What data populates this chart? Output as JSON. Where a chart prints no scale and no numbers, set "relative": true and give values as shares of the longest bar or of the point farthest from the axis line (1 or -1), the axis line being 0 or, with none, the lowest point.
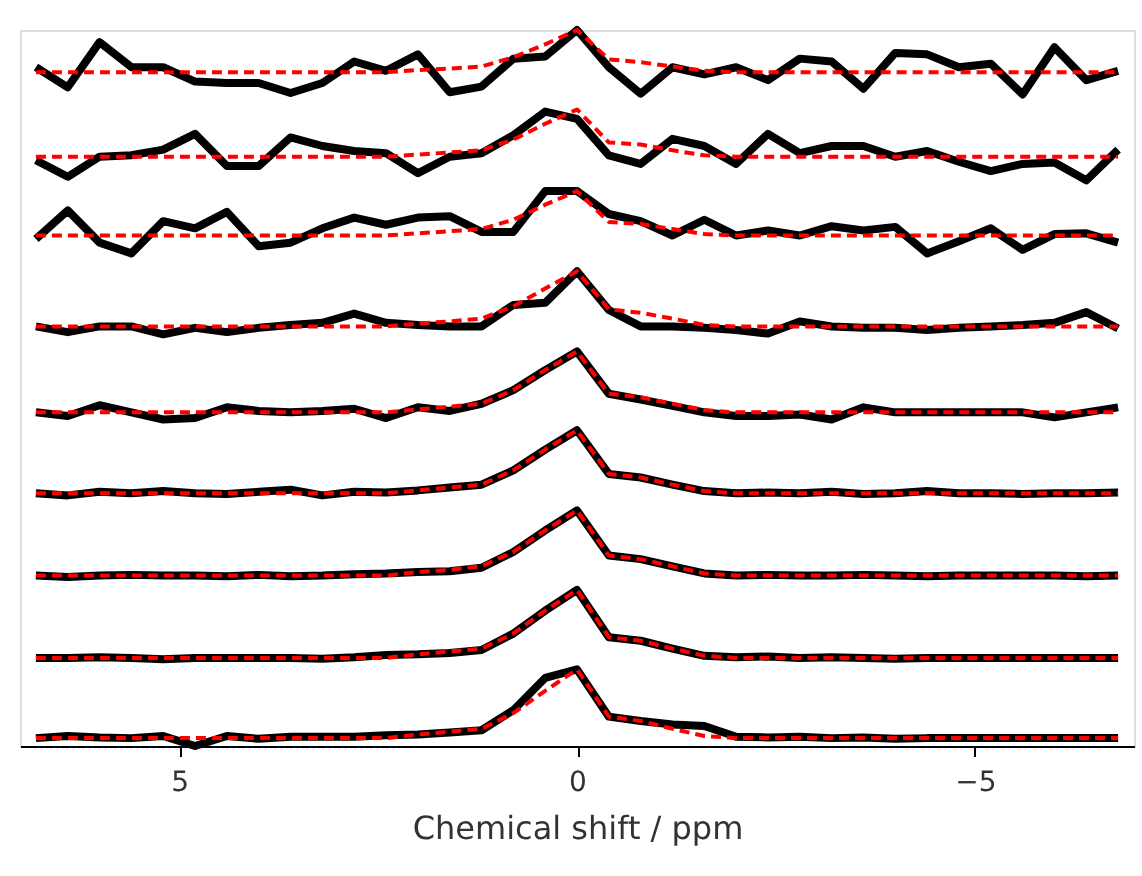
{
  "chart_data": {
    "type": "line",
    "xlabel": "Chemical shift / ppm",
    "relative": true,
    "xlim": [
      7,
      -7
    ],
    "xticks": [
      5,
      0,
      -5
    ],
    "x": [
      6.8,
      6.4,
      6.0,
      5.6,
      5.2,
      4.8,
      4.4,
      4.0,
      3.6,
      3.2,
      2.8,
      2.4,
      2.0,
      1.6,
      1.2,
      0.8,
      0.4,
      0,
      -0.4,
      -0.8,
      -1.2,
      -1.6,
      -2.0,
      -2.4,
      -2.8,
      -3.2,
      -3.6,
      -4.0,
      -4.4,
      -4.8,
      -5.2,
      -5.6,
      -6.0,
      -6.4,
      -6.8
    ],
    "series": [
      {
        "color": "#000000",
        "line_style": "solid",
        "values": [
          0.948,
          0.92,
          0.983,
          0.948,
          0.948,
          0.928,
          0.926,
          0.926,
          0.912,
          0.926,
          0.956,
          0.943,
          0.966,
          0.913,
          0.921,
          0.96,
          0.963,
          1.0,
          0.948,
          0.911,
          0.948,
          0.938,
          0.948,
          0.93,
          0.96,
          0.956,
          0.918,
          0.968,
          0.966,
          0.948,
          0.953,
          0.91,
          0.976,
          0.93,
          0.943
        ]
      },
      {
        "color": "#ff0000",
        "line_style": "dashed",
        "values": [
          0.941,
          0.941,
          0.941,
          0.941,
          0.941,
          0.941,
          0.941,
          0.941,
          0.941,
          0.941,
          0.941,
          0.941,
          0.944,
          0.946,
          0.949,
          0.962,
          0.98,
          1.0,
          0.959,
          0.955,
          0.949,
          0.943,
          0.941,
          0.941,
          0.941,
          0.941,
          0.941,
          0.941,
          0.941,
          0.941,
          0.941,
          0.941,
          0.941,
          0.941,
          0.941
        ]
      },
      {
        "color": "#000000",
        "line_style": "solid",
        "values": [
          0.818,
          0.795,
          0.823,
          0.825,
          0.833,
          0.855,
          0.81,
          0.81,
          0.85,
          0.838,
          0.831,
          0.828,
          0.8,
          0.823,
          0.828,
          0.853,
          0.886,
          0.876,
          0.825,
          0.813,
          0.848,
          0.838,
          0.813,
          0.855,
          0.828,
          0.838,
          0.838,
          0.823,
          0.831,
          0.816,
          0.803,
          0.813,
          0.815,
          0.79,
          0.833
        ]
      },
      {
        "color": "#ff0000",
        "line_style": "dashed",
        "values": [
          0.823,
          0.823,
          0.823,
          0.823,
          0.823,
          0.823,
          0.823,
          0.823,
          0.823,
          0.823,
          0.823,
          0.823,
          0.826,
          0.829,
          0.832,
          0.847,
          0.869,
          0.889,
          0.843,
          0.84,
          0.832,
          0.825,
          0.823,
          0.823,
          0.823,
          0.823,
          0.823,
          0.823,
          0.823,
          0.823,
          0.823,
          0.823,
          0.823,
          0.823,
          0.823
        ]
      },
      {
        "color": "#000000",
        "line_style": "solid",
        "values": [
          0.708,
          0.748,
          0.703,
          0.688,
          0.733,
          0.723,
          0.746,
          0.698,
          0.703,
          0.723,
          0.738,
          0.728,
          0.738,
          0.74,
          0.718,
          0.718,
          0.775,
          0.775,
          0.743,
          0.733,
          0.713,
          0.735,
          0.713,
          0.72,
          0.713,
          0.726,
          0.72,
          0.725,
          0.688,
          0.705,
          0.723,
          0.693,
          0.715,
          0.716,
          0.703
        ]
      },
      {
        "color": "#ff0000",
        "line_style": "dashed",
        "values": [
          0.713,
          0.713,
          0.713,
          0.713,
          0.713,
          0.713,
          0.713,
          0.713,
          0.713,
          0.713,
          0.713,
          0.713,
          0.716,
          0.719,
          0.722,
          0.735,
          0.756,
          0.775,
          0.732,
          0.729,
          0.722,
          0.715,
          0.713,
          0.713,
          0.713,
          0.713,
          0.713,
          0.713,
          0.713,
          0.713,
          0.713,
          0.713,
          0.713,
          0.713,
          0.713
        ]
      },
      {
        "color": "#000000",
        "line_style": "solid",
        "values": [
          0.586,
          0.578,
          0.586,
          0.586,
          0.575,
          0.584,
          0.578,
          0.584,
          0.588,
          0.591,
          0.604,
          0.591,
          0.588,
          0.586,
          0.586,
          0.616,
          0.619,
          0.663,
          0.609,
          0.586,
          0.586,
          0.584,
          0.581,
          0.576,
          0.593,
          0.586,
          0.584,
          0.584,
          0.581,
          0.584,
          0.586,
          0.588,
          0.591,
          0.606,
          0.583
        ]
      },
      {
        "color": "#ff0000",
        "line_style": "dashed",
        "values": [
          0.586,
          0.586,
          0.586,
          0.586,
          0.586,
          0.586,
          0.586,
          0.586,
          0.586,
          0.586,
          0.586,
          0.586,
          0.59,
          0.593,
          0.597,
          0.614,
          0.639,
          0.663,
          0.61,
          0.605,
          0.597,
          0.588,
          0.586,
          0.586,
          0.586,
          0.586,
          0.586,
          0.586,
          0.586,
          0.586,
          0.586,
          0.586,
          0.586,
          0.586,
          0.586
        ]
      },
      {
        "color": "#000000",
        "line_style": "solid",
        "values": [
          0.466,
          0.461,
          0.476,
          0.466,
          0.456,
          0.458,
          0.473,
          0.468,
          0.466,
          0.468,
          0.471,
          0.458,
          0.473,
          0.468,
          0.478,
          0.497,
          0.525,
          0.551,
          0.492,
          0.484,
          0.475,
          0.466,
          0.461,
          0.461,
          0.463,
          0.456,
          0.473,
          0.466,
          0.466,
          0.466,
          0.466,
          0.466,
          0.459,
          0.466,
          0.473
        ]
      },
      {
        "color": "#ff0000",
        "line_style": "dashed",
        "values": [
          0.466,
          0.466,
          0.466,
          0.466,
          0.466,
          0.466,
          0.466,
          0.466,
          0.466,
          0.466,
          0.466,
          0.466,
          0.47,
          0.474,
          0.478,
          0.497,
          0.525,
          0.551,
          0.492,
          0.487,
          0.478,
          0.469,
          0.466,
          0.466,
          0.466,
          0.466,
          0.466,
          0.466,
          0.466,
          0.466,
          0.466,
          0.466,
          0.466,
          0.466,
          0.466
        ]
      },
      {
        "color": "#000000",
        "line_style": "solid",
        "values": [
          0.353,
          0.35,
          0.355,
          0.353,
          0.356,
          0.353,
          0.352,
          0.355,
          0.358,
          0.35,
          0.355,
          0.354,
          0.357,
          0.361,
          0.365,
          0.385,
          0.414,
          0.441,
          0.38,
          0.375,
          0.365,
          0.356,
          0.353,
          0.354,
          0.353,
          0.355,
          0.352,
          0.353,
          0.356,
          0.353,
          0.353,
          0.352,
          0.353,
          0.353,
          0.354
        ]
      },
      {
        "color": "#ff0000",
        "line_style": "dashed",
        "values": [
          0.353,
          0.353,
          0.353,
          0.353,
          0.353,
          0.353,
          0.353,
          0.353,
          0.353,
          0.353,
          0.353,
          0.353,
          0.357,
          0.361,
          0.365,
          0.385,
          0.414,
          0.441,
          0.38,
          0.375,
          0.365,
          0.356,
          0.353,
          0.353,
          0.353,
          0.353,
          0.353,
          0.353,
          0.353,
          0.353,
          0.353,
          0.353,
          0.353,
          0.353,
          0.353
        ]
      },
      {
        "color": "#000000",
        "line_style": "solid",
        "values": [
          0.238,
          0.236,
          0.238,
          0.239,
          0.238,
          0.238,
          0.237,
          0.239,
          0.237,
          0.238,
          0.24,
          0.241,
          0.243,
          0.244,
          0.249,
          0.271,
          0.301,
          0.329,
          0.266,
          0.261,
          0.251,
          0.241,
          0.238,
          0.239,
          0.238,
          0.238,
          0.239,
          0.238,
          0.237,
          0.238,
          0.238,
          0.238,
          0.238,
          0.237,
          0.238
        ]
      },
      {
        "color": "#ff0000",
        "line_style": "dashed",
        "values": [
          0.238,
          0.238,
          0.238,
          0.238,
          0.238,
          0.238,
          0.238,
          0.238,
          0.238,
          0.238,
          0.238,
          0.238,
          0.243,
          0.246,
          0.251,
          0.271,
          0.301,
          0.329,
          0.266,
          0.261,
          0.251,
          0.241,
          0.238,
          0.238,
          0.238,
          0.238,
          0.238,
          0.238,
          0.238,
          0.238,
          0.238,
          0.238,
          0.238,
          0.238,
          0.238
        ]
      },
      {
        "color": "#000000",
        "line_style": "solid",
        "values": [
          0.123,
          0.123,
          0.124,
          0.123,
          0.121,
          0.123,
          0.123,
          0.123,
          0.123,
          0.122,
          0.124,
          0.127,
          0.128,
          0.13,
          0.134,
          0.157,
          0.189,
          0.218,
          0.152,
          0.147,
          0.136,
          0.126,
          0.124,
          0.125,
          0.123,
          0.124,
          0.123,
          0.122,
          0.123,
          0.123,
          0.123,
          0.123,
          0.123,
          0.123,
          0.123
        ]
      },
      {
        "color": "#ff0000",
        "line_style": "dashed",
        "values": [
          0.123,
          0.123,
          0.123,
          0.123,
          0.123,
          0.123,
          0.123,
          0.123,
          0.123,
          0.123,
          0.123,
          0.123,
          0.128,
          0.132,
          0.136,
          0.157,
          0.189,
          0.218,
          0.152,
          0.147,
          0.136,
          0.126,
          0.123,
          0.123,
          0.123,
          0.123,
          0.123,
          0.123,
          0.123,
          0.123,
          0.123,
          0.123,
          0.123,
          0.123,
          0.123
        ]
      },
      {
        "color": "#000000",
        "line_style": "solid",
        "values": [
          0.011,
          0.014,
          0.012,
          0.011,
          0.014,
          0.0,
          0.014,
          0.01,
          0.013,
          0.013,
          0.013,
          0.015,
          0.016,
          0.019,
          0.022,
          0.05,
          0.095,
          0.107,
          0.041,
          0.035,
          0.03,
          0.028,
          0.013,
          0.012,
          0.013,
          0.011,
          0.012,
          0.01,
          0.011,
          0.011,
          0.011,
          0.011,
          0.011,
          0.011,
          0.011
        ]
      },
      {
        "color": "#ff0000",
        "line_style": "dashed",
        "values": [
          0.011,
          0.011,
          0.011,
          0.011,
          0.011,
          0.011,
          0.011,
          0.011,
          0.011,
          0.011,
          0.011,
          0.011,
          0.016,
          0.02,
          0.024,
          0.046,
          0.077,
          0.107,
          0.041,
          0.035,
          0.024,
          0.014,
          0.011,
          0.011,
          0.011,
          0.011,
          0.011,
          0.011,
          0.011,
          0.011,
          0.011,
          0.011,
          0.011,
          0.011,
          0.011
        ]
      }
    ]
  }
}
